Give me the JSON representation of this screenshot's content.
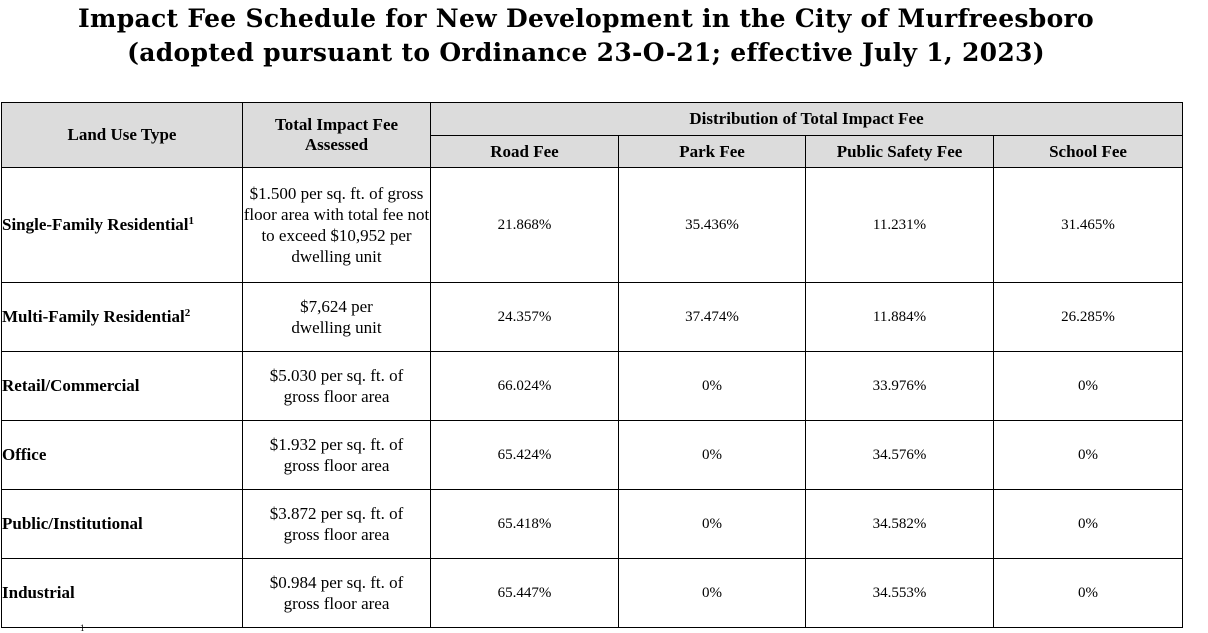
{
  "title": {
    "line1": "Impact Fee Schedule for New Development in the City of Murfreesboro",
    "line2": "(adopted pursuant to Ordinance 23-O-21; effective July 1, 2023)"
  },
  "headers": {
    "land_use_type": "Land Use Type",
    "total_impact_fee": "Total Impact Fee Assessed",
    "distribution": "Distribution of Total Impact Fee",
    "road_fee": "Road Fee",
    "park_fee": "Park Fee",
    "public_safety_fee": "Public Safety Fee",
    "school_fee": "School Fee"
  },
  "rows": [
    {
      "land_use": "Single-Family Residential",
      "footnote": "1",
      "total_fee": "$1.500 per sq. ft. of gross floor area with total fee not to exceed $10,952 per dwelling unit",
      "road": "21.868%",
      "park": "35.436%",
      "public_safety": "11.231%",
      "school": "31.465%"
    },
    {
      "land_use": "Multi-Family Residential",
      "footnote": "2",
      "total_fee": "$7,624 per dwelling unit",
      "road": "24.357%",
      "park": "37.474%",
      "public_safety": "11.884%",
      "school": "26.285%"
    },
    {
      "land_use": "Retail/Commercial",
      "footnote": "",
      "total_fee": "$5.030 per sq. ft. of gross floor area",
      "road": "66.024%",
      "park": "0%",
      "public_safety": "33.976%",
      "school": "0%"
    },
    {
      "land_use": "Office",
      "footnote": "",
      "total_fee": "$1.932 per sq. ft. of gross floor area",
      "road": "65.424%",
      "park": "0%",
      "public_safety": "34.576%",
      "school": "0%"
    },
    {
      "land_use": "Public/Institutional",
      "footnote": "",
      "total_fee": "$3.872 per sq. ft. of gross floor area",
      "road": "65.418%",
      "park": "0%",
      "public_safety": "34.582%",
      "school": "0%"
    },
    {
      "land_use": "Industrial",
      "footnote": "",
      "total_fee": "$0.984 per sq. ft. of gross floor area",
      "road": "65.447%",
      "park": "0%",
      "public_safety": "34.553%",
      "school": "0%"
    }
  ],
  "footnote_mark": "1"
}
